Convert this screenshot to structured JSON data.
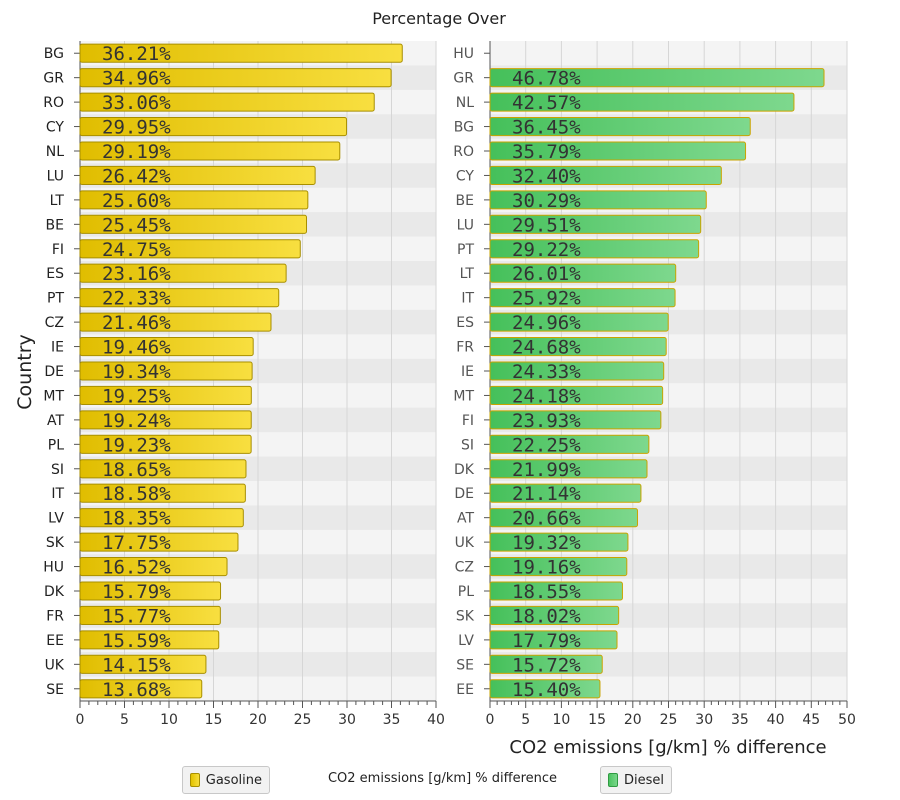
{
  "chart_data": {
    "type": "bar",
    "orientation": "horizontal",
    "title": "Percentage Over",
    "ylabel": "Country",
    "legend": {
      "items": [
        "Gasoline",
        "Diesel"
      ],
      "caption": "CO2 emissions [g/km] % difference",
      "placement": "bottom"
    },
    "colors": {
      "gasoline": "#e6c300",
      "diesel": "#4cc461"
    },
    "panels": [
      {
        "series_name": "Gasoline",
        "xlabel": "",
        "xlim": [
          0,
          40
        ],
        "xticks": [
          0,
          5,
          10,
          15,
          20,
          25,
          30,
          35,
          40
        ],
        "categories": [
          "BG",
          "GR",
          "RO",
          "CY",
          "NL",
          "LU",
          "LT",
          "BE",
          "FI",
          "ES",
          "PT",
          "CZ",
          "IE",
          "DE",
          "MT",
          "AT",
          "PL",
          "SI",
          "IT",
          "LV",
          "SK",
          "HU",
          "DK",
          "FR",
          "EE",
          "UK",
          "SE"
        ],
        "values": [
          36.21,
          34.96,
          33.06,
          29.95,
          29.19,
          26.42,
          25.6,
          25.45,
          24.75,
          23.16,
          22.33,
          21.46,
          19.46,
          19.34,
          19.25,
          19.24,
          19.23,
          18.65,
          18.58,
          18.35,
          17.75,
          16.52,
          15.79,
          15.77,
          15.59,
          14.15,
          13.68
        ],
        "labels": [
          "36.21%",
          "34.96%",
          "33.06%",
          "29.95%",
          "29.19%",
          "26.42%",
          "25.60%",
          "25.45%",
          "24.75%",
          "23.16%",
          "22.33%",
          "21.46%",
          "19.46%",
          "19.34%",
          "19.25%",
          "19.24%",
          "19.23%",
          "18.65%",
          "18.58%",
          "18.35%",
          "17.75%",
          "16.52%",
          "15.79%",
          "15.77%",
          "15.59%",
          "14.15%",
          "13.68%"
        ]
      },
      {
        "series_name": "Diesel",
        "xlabel": "CO2 emissions [g/km] % difference",
        "xlim": [
          0,
          50
        ],
        "xticks": [
          0,
          5,
          10,
          15,
          20,
          25,
          30,
          35,
          40,
          45,
          50
        ],
        "categories": [
          "HU",
          "GR",
          "NL",
          "BG",
          "RO",
          "CY",
          "BE",
          "LU",
          "PT",
          "LT",
          "IT",
          "ES",
          "FR",
          "IE",
          "MT",
          "FI",
          "SI",
          "DK",
          "DE",
          "AT",
          "UK",
          "CZ",
          "PL",
          "SK",
          "LV",
          "SE",
          "EE"
        ],
        "values": [
          null,
          46.78,
          42.57,
          36.45,
          35.79,
          32.4,
          30.29,
          29.51,
          29.22,
          26.01,
          25.92,
          24.96,
          24.68,
          24.33,
          24.18,
          23.93,
          22.25,
          21.99,
          21.14,
          20.66,
          19.32,
          19.16,
          18.55,
          18.02,
          17.79,
          15.72,
          15.4
        ],
        "labels": [
          "",
          "46.78%",
          "42.57%",
          "36.45%",
          "35.79%",
          "32.40%",
          "30.29%",
          "29.51%",
          "29.22%",
          "26.01%",
          "25.92%",
          "24.96%",
          "24.68%",
          "24.33%",
          "24.18%",
          "23.93%",
          "22.25%",
          "21.99%",
          "21.14%",
          "20.66%",
          "19.32%",
          "19.16%",
          "18.55%",
          "18.02%",
          "17.79%",
          "15.72%",
          "15.40%"
        ]
      }
    ]
  }
}
